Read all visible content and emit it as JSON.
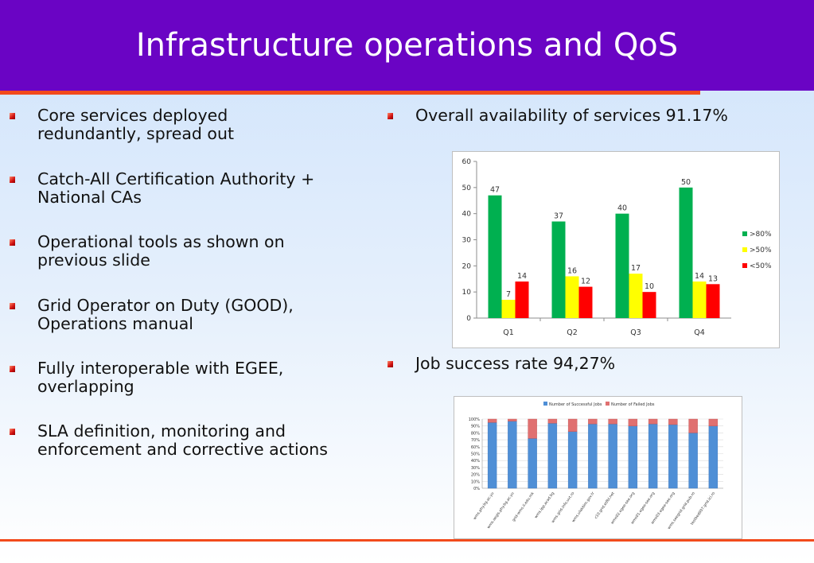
{
  "title": "Infrastructure operations and QoS",
  "left_bullets": [
    {
      "lines": [
        "Core services deployed",
        "redundantly, spread out"
      ]
    },
    {
      "lines": [
        "Catch-All Certification Authority +",
        "National CAs"
      ]
    },
    {
      "lines": [
        "Operational tools as shown on",
        "previous slide"
      ]
    },
    {
      "lines": [
        "Grid Operator on Duty (GOOD),",
        "Operations manual"
      ]
    },
    {
      "lines": [
        "Fully interoperable with EGEE,",
        "overlapping"
      ]
    },
    {
      "lines": [
        "SLA definition, monitoring and",
        "enforcement and corrective actions"
      ]
    }
  ],
  "right_bullets": [
    {
      "text": "Overall availability of services 91.17%"
    },
    {
      "text": "Job success rate 94,27%"
    }
  ],
  "colors": {
    "title_bg": "#6a04c4",
    "accent_rule": "#f24a1c",
    "green": "#00b050",
    "yellow": "#ffff00",
    "red": "#ff0000",
    "success_blue": "#4f8fd6",
    "failed_red": "#e07070"
  },
  "chart_data": [
    {
      "type": "bar",
      "categories": [
        "Q1",
        "Q2",
        "Q3",
        "Q4"
      ],
      "series": [
        {
          "name": ">80%",
          "values": [
            47,
            37,
            40,
            50
          ],
          "color": "#00b050"
        },
        {
          "name": ">50%",
          "values": [
            7,
            16,
            17,
            14
          ],
          "color": "#ffff00"
        },
        {
          "name": "<50%",
          "values": [
            14,
            12,
            10,
            13
          ],
          "color": "#ff0000"
        }
      ],
      "ylim": [
        0,
        60
      ],
      "yticks": [
        0,
        10,
        20,
        30,
        40,
        50,
        60
      ],
      "legend": "right",
      "grid": false
    },
    {
      "type": "bar",
      "stacked": true,
      "categories": [
        "wms.phy.bg.ac.yu",
        "wms.aegis.phy.bg.ac.yu",
        "grid-wms.ii.edu.mk",
        "wms.ipp.acad.bg",
        "wms.grid.info.uvt.ro",
        "wms.ulakbim.gov.tr",
        "c10.grid.etfbl.net",
        "wms02.egee-see.org",
        "wms01.egee-see.org",
        "wms03.egee-see.org",
        "wms.seegrid.grid.pub.ro",
        "testbed007.grid.ici.ro"
      ],
      "series": [
        {
          "name": "Number of Successful Jobs",
          "values": [
            95,
            97,
            72,
            94,
            82,
            93,
            93,
            90,
            93,
            92,
            80,
            90
          ],
          "color": "#4f8fd6"
        },
        {
          "name": "Number of Failed Jobs",
          "values": [
            5,
            3,
            28,
            6,
            18,
            7,
            7,
            10,
            7,
            8,
            20,
            10
          ],
          "color": "#e07070"
        }
      ],
      "yticks": [
        "0%",
        "10%",
        "20%",
        "30%",
        "40%",
        "50%",
        "60%",
        "70%",
        "80%",
        "90%",
        "100%"
      ],
      "ylim": [
        0,
        100
      ],
      "legend": "top",
      "grid": true
    }
  ]
}
